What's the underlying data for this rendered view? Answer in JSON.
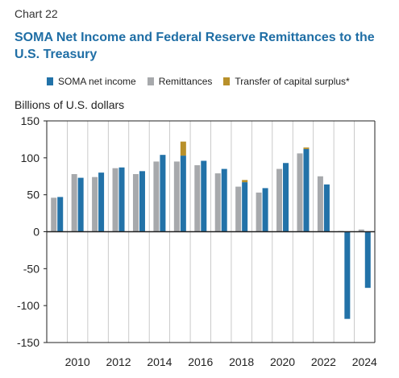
{
  "header": {
    "chart_number": "Chart 22",
    "title": "SOMA Net Income and Federal Reserve Remittances to the U.S. Treasury"
  },
  "colors": {
    "soma_net_income": "#2272a8",
    "remittances": "#a7a9ac",
    "transfer_of_capital_surplus": "#b8902a",
    "axis": "#222222",
    "grid": "#bdbdbd"
  },
  "chart_data": {
    "type": "bar",
    "title": "SOMA Net Income and Federal Reserve Remittances to the U.S. Treasury",
    "ylabel": "Billions of U.S. dollars",
    "xlabel": "",
    "ylim": [
      -150,
      150
    ],
    "yticks": [
      "150",
      "100",
      "50",
      "0",
      "-50",
      "-100",
      "-150"
    ],
    "ytick_values": [
      150,
      100,
      50,
      0,
      -50,
      -100,
      -150
    ],
    "xtick_labels": [
      "2010",
      "2012",
      "2014",
      "2016",
      "2018",
      "2020",
      "2022",
      "2024"
    ],
    "xtick_years": [
      2010,
      2012,
      2014,
      2016,
      2018,
      2020,
      2022,
      2024
    ],
    "grid": "vertical gridlines at each year",
    "legend_position": "top",
    "categories": [
      2009,
      2010,
      2011,
      2012,
      2013,
      2014,
      2015,
      2016,
      2017,
      2018,
      2019,
      2020,
      2021,
      2022,
      2023,
      2024
    ],
    "series": [
      {
        "name": "SOMA net income",
        "values": [
          47,
          73,
          80,
          87,
          82,
          104,
          103,
          96,
          85,
          67,
          59,
          93,
          112,
          64,
          -118,
          -76
        ]
      },
      {
        "name": "Remittances",
        "values": [
          46,
          78,
          74,
          86,
          78,
          95,
          95,
          90,
          79,
          61,
          53,
          85,
          106,
          75,
          1,
          3
        ]
      },
      {
        "name": "Transfer of capital surplus*",
        "values": [
          0,
          0,
          0,
          0,
          0,
          0,
          19,
          0,
          0,
          3,
          0,
          0,
          2,
          0,
          0,
          0
        ]
      }
    ]
  }
}
